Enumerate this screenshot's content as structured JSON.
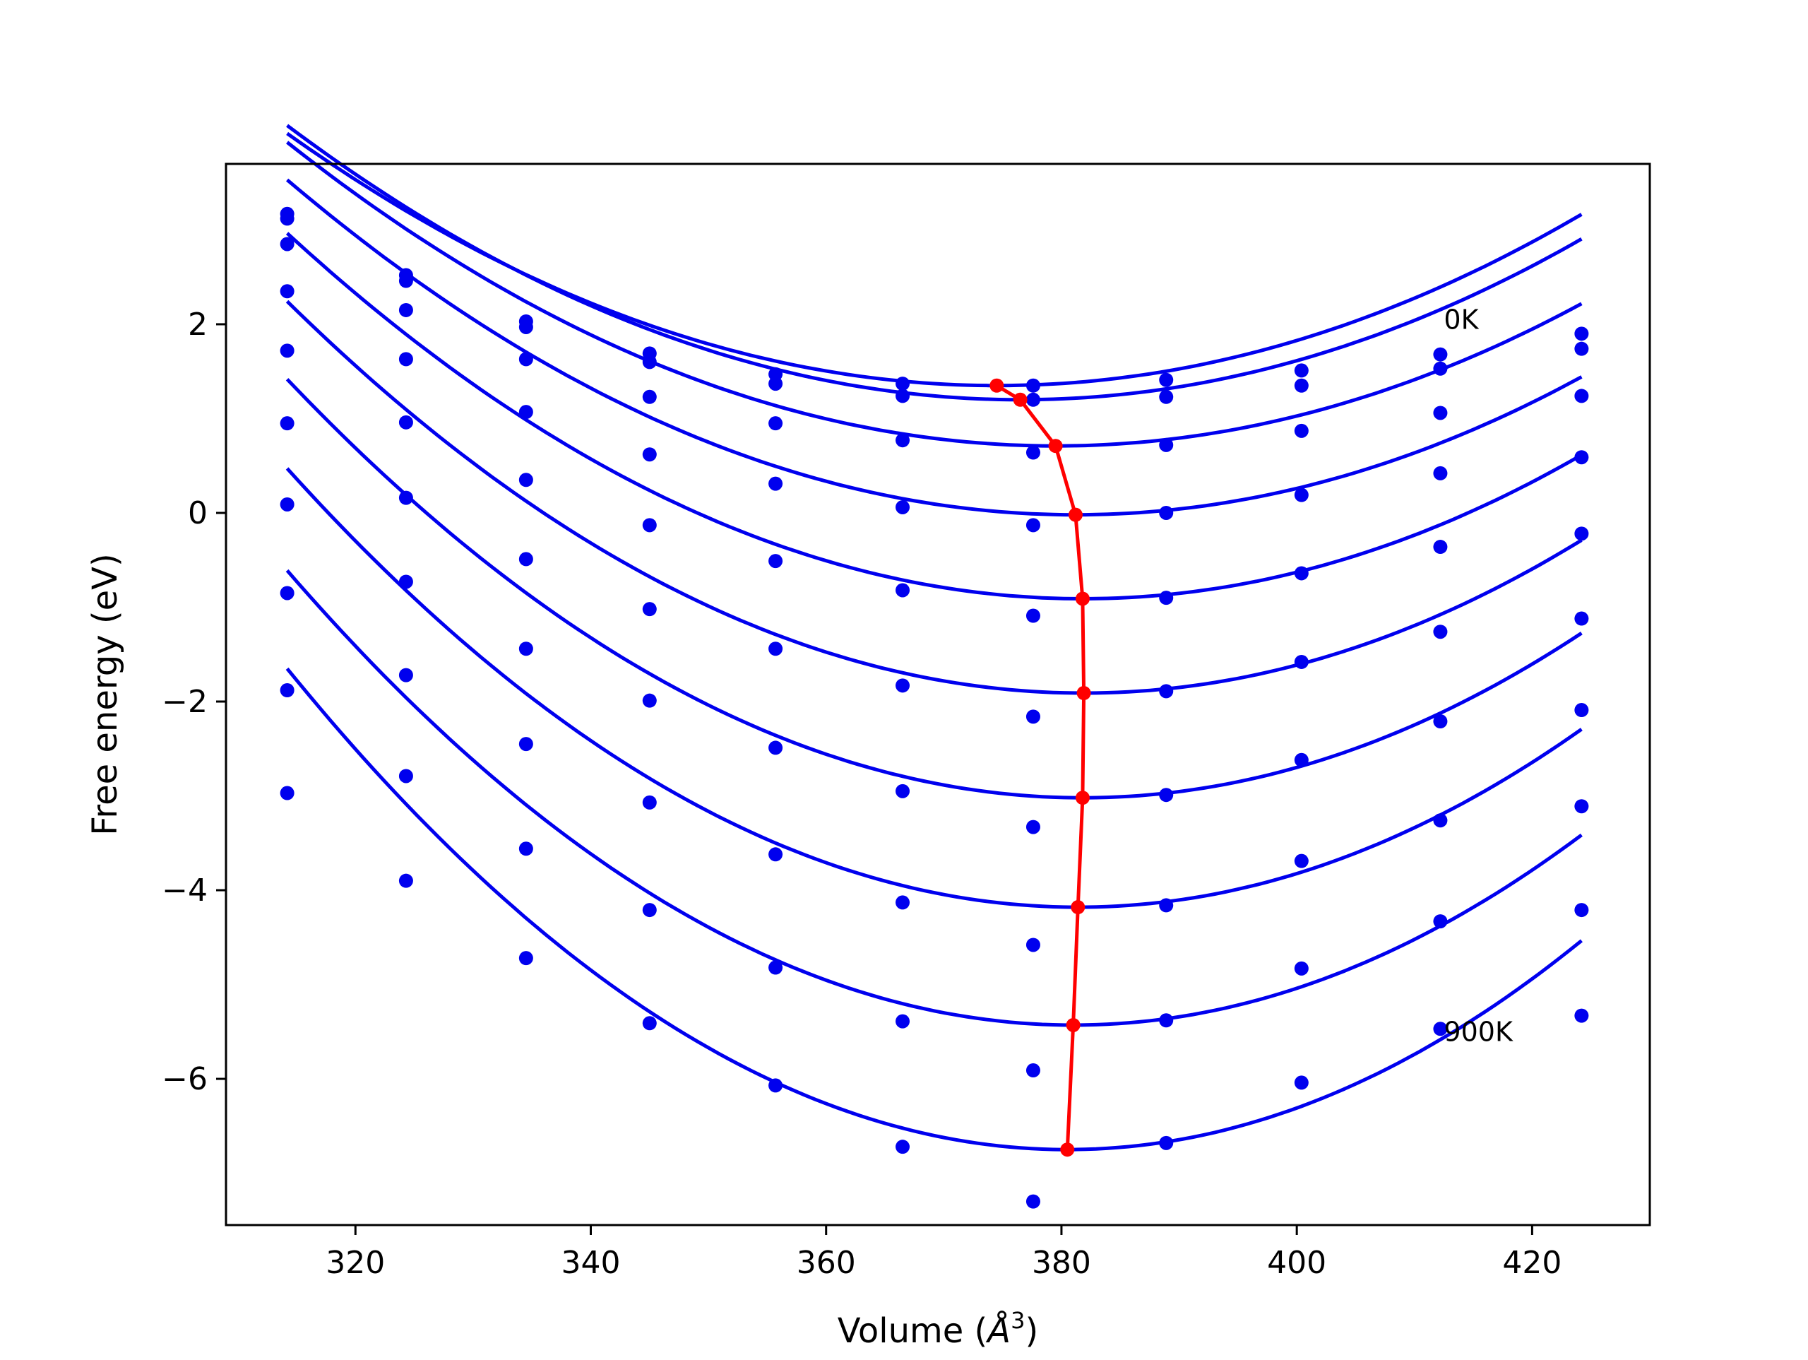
{
  "chart_data": {
    "type": "line",
    "title": "",
    "xlabel": "Volume (",
    "xlabel_unit_base": "Å",
    "xlabel_unit_exp": "3",
    "xlabel_close": ")",
    "ylabel": "Free energy (eV)",
    "xlim": [
      309,
      430
    ],
    "ylim": [
      -7.55,
      3.7
    ],
    "xticks": [
      320,
      340,
      360,
      380,
      400,
      420
    ],
    "xtick_labels": [
      "320",
      "340",
      "360",
      "380",
      "400",
      "420"
    ],
    "yticks": [
      2,
      0,
      -2,
      -4,
      -6
    ],
    "ytick_labels": [
      "2",
      "0",
      "−2",
      "−4",
      "−6"
    ],
    "grid": false,
    "colors": {
      "curves": "#0000ee",
      "points": "#0000ee",
      "minima": "#ff0000",
      "frame": "#000000"
    },
    "volumes": [
      314.2,
      324.3,
      334.5,
      345.0,
      355.7,
      366.5,
      377.6,
      388.9,
      400.4,
      412.2,
      424.2
    ],
    "annotations": [
      {
        "text": "0K",
        "x": 412.5,
        "y": 1.95
      },
      {
        "text": "900K",
        "x": 412.5,
        "y": -5.6
      }
    ],
    "series": [
      {
        "points": [
          3.17,
          2.52,
          2.03,
          1.69,
          1.47,
          1.37,
          1.35,
          1.41,
          1.51,
          1.68,
          1.9
        ],
        "fit": {
          "a": 0.000735,
          "vmin": 374.5,
          "fmin": 1.35
        }
      },
      {
        "points": [
          3.12,
          2.46,
          1.97,
          1.6,
          1.37,
          1.24,
          1.2,
          1.23,
          1.35,
          1.53,
          1.74
        ],
        "fit": {
          "a": 0.000749,
          "vmin": 376.5,
          "fmin": 1.2
        }
      },
      {
        "points": [
          2.85,
          2.15,
          1.63,
          1.23,
          0.95,
          0.77,
          0.64,
          0.72,
          0.87,
          1.06,
          1.24
        ],
        "fit": {
          "a": 0.000755,
          "vmin": 379.5,
          "fmin": 0.71
        }
      },
      {
        "points": [
          2.35,
          1.63,
          1.07,
          0.62,
          0.31,
          0.06,
          -0.13,
          0.0,
          0.19,
          0.42,
          0.59
        ],
        "fit": {
          "a": 0.000791,
          "vmin": 381.2,
          "fmin": -0.02
        }
      },
      {
        "points": [
          1.72,
          0.96,
          0.35,
          -0.13,
          -0.51,
          -0.82,
          -1.09,
          -0.9,
          -0.64,
          -0.36,
          -0.22
        ],
        "fit": {
          "a": 0.000848,
          "vmin": 381.8,
          "fmin": -0.91
        }
      },
      {
        "points": [
          0.95,
          0.16,
          -0.49,
          -1.02,
          -1.44,
          -1.83,
          -2.16,
          -1.89,
          -1.58,
          -1.26,
          -1.12
        ],
        "fit": {
          "a": 0.000906,
          "vmin": 381.9,
          "fmin": -1.91
        }
      },
      {
        "points": [
          0.09,
          -0.73,
          -1.44,
          -1.99,
          -2.49,
          -2.95,
          -3.33,
          -2.99,
          -2.62,
          -2.21,
          -2.09
        ],
        "fit": {
          "a": 0.000971,
          "vmin": 381.8,
          "fmin": -3.02
        }
      },
      {
        "points": [
          -0.85,
          -1.72,
          -2.45,
          -3.07,
          -3.62,
          -4.13,
          -4.58,
          -4.16,
          -3.69,
          -3.26,
          -3.11
        ],
        "fit": {
          "a": 0.00103,
          "vmin": 381.4,
          "fmin": -4.18
        }
      },
      {
        "points": [
          -1.88,
          -2.79,
          -3.56,
          -4.21,
          -4.82,
          -5.39,
          -5.91,
          -5.38,
          -4.83,
          -4.33,
          -4.21
        ],
        "fit": {
          "a": 0.00108,
          "vmin": 381.0,
          "fmin": -5.43
        }
      },
      {
        "points": [
          -2.97,
          -3.9,
          -4.72,
          -5.41,
          -6.07,
          -6.72,
          -7.3,
          -6.68,
          -6.04,
          -5.47,
          -5.33
        ],
        "fit": {
          "a": 0.00116,
          "vmin": 380.5,
          "fmin": -6.75
        }
      }
    ],
    "minima_curve": {
      "x": [
        374.5,
        376.5,
        379.5,
        381.2,
        381.8,
        381.9,
        381.8,
        381.4,
        381.0,
        380.5
      ],
      "y": [
        1.35,
        1.2,
        0.71,
        -0.02,
        -0.91,
        -1.91,
        -3.02,
        -4.18,
        -5.43,
        -6.75
      ]
    }
  }
}
